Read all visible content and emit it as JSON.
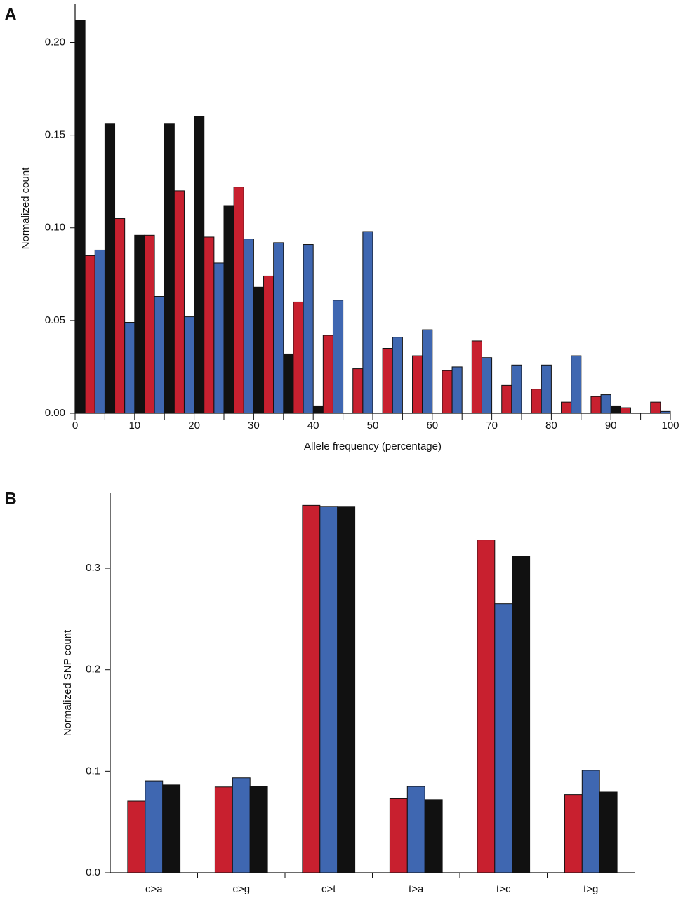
{
  "chart_data": [
    {
      "type": "histogram",
      "label": "A",
      "xlabel": "Allele frequency (percentage)",
      "ylabel": "Normalized count",
      "bins": [
        0,
        5,
        10,
        15,
        20,
        25,
        30,
        35,
        40,
        45,
        50,
        55,
        60,
        65,
        70,
        75,
        80,
        85,
        90,
        95,
        100
      ],
      "series": [
        {
          "color": "#111111",
          "values": [
            0.212,
            0.156,
            0.096,
            0.156,
            0.16,
            0.112,
            0.068,
            0.032,
            0.004,
            0,
            0,
            0,
            0,
            0,
            0,
            0,
            0,
            0,
            0.004,
            0
          ]
        },
        {
          "color": "#c8202f",
          "values": [
            0.085,
            0.105,
            0.096,
            0.12,
            0.095,
            0.122,
            0.074,
            0.06,
            0.042,
            0.024,
            0.035,
            0.031,
            0.023,
            0.039,
            0.015,
            0.013,
            0.006,
            0.009,
            0.003,
            0.006
          ]
        },
        {
          "color": "#3f67b1",
          "values": [
            0.088,
            0.049,
            0.063,
            0.052,
            0.081,
            0.094,
            0.092,
            0.091,
            0.061,
            0.098,
            0.041,
            0.045,
            0.025,
            0.03,
            0.026,
            0.026,
            0.031,
            0.01,
            0,
            0.001
          ]
        }
      ],
      "xlim": [
        0,
        100
      ],
      "xticks": [
        0,
        10,
        20,
        30,
        40,
        50,
        60,
        70,
        80,
        90,
        100
      ],
      "xminorticks": [
        5,
        15,
        25,
        35,
        45,
        55,
        65,
        75,
        85,
        95
      ],
      "ylim": [
        0,
        0.221
      ],
      "yticks": [
        {
          "value": 0,
          "label": "0.00"
        },
        {
          "value": 0.05,
          "label": "0.05"
        },
        {
          "value": 0.1,
          "label": "0.10"
        },
        {
          "value": 0.15,
          "label": "0.15"
        },
        {
          "value": 0.2,
          "label": "0.20"
        }
      ]
    },
    {
      "type": "bar",
      "label": "B",
      "ylabel": "Normalized SNP count",
      "categories": [
        "c>a",
        "c>g",
        "c>t",
        "t>a",
        "t>c",
        "t>g"
      ],
      "series": [
        {
          "color": "#c8202f",
          "values": [
            0.0705,
            0.0845,
            0.362,
            0.073,
            0.328,
            0.077
          ]
        },
        {
          "color": "#3f67b1",
          "values": [
            0.0905,
            0.0935,
            0.361,
            0.085,
            0.265,
            0.101
          ]
        },
        {
          "color": "#111111",
          "values": [
            0.0865,
            0.085,
            0.361,
            0.072,
            0.312,
            0.0795
          ]
        }
      ],
      "ylim": [
        0,
        0.374
      ],
      "yticks": [
        {
          "value": 0,
          "label": "0.0"
        },
        0.1,
        0.2,
        0.3
      ]
    }
  ]
}
